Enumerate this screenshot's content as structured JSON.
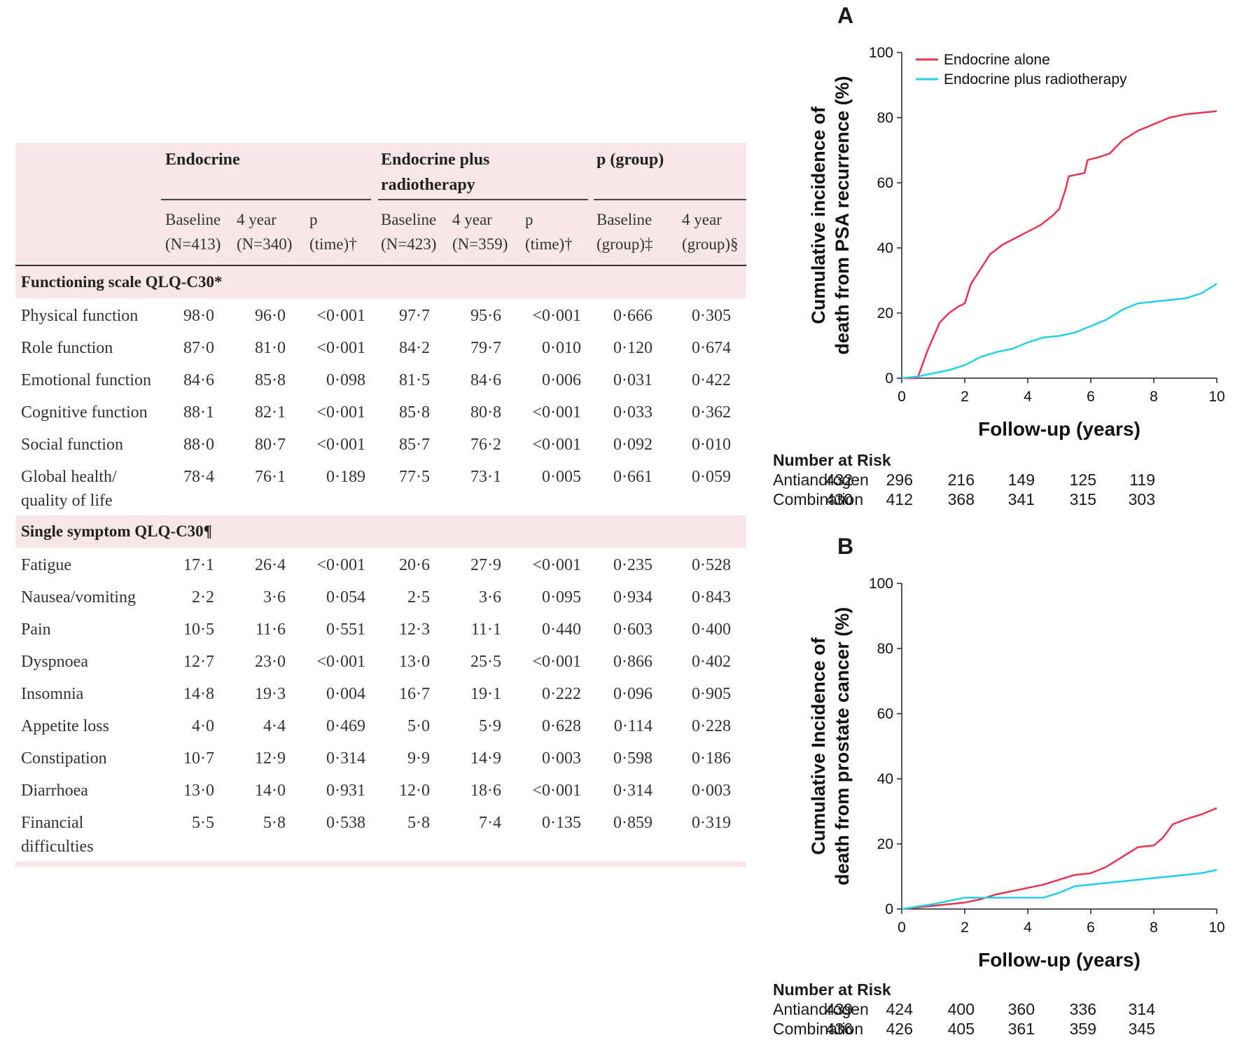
{
  "table": {
    "group_headers": [
      "Endocrine",
      "Endocrine plus radiotherapy",
      "p (group)"
    ],
    "sub_headers": [
      "Baseline (N=413)",
      "4 year (N=340)",
      "p (time)†",
      "Baseline (N=423)",
      "4 year (N=359)",
      "p (time)†",
      "Baseline (group)‡",
      "4 year (group)§"
    ],
    "section1": "Functioning scale QLQ-C30*",
    "rows1": [
      {
        "label": "Physical function",
        "v": [
          "98·0",
          "96·0",
          "<0·001",
          "97·7",
          "95·6",
          "<0·001",
          "0·666",
          "0·305"
        ]
      },
      {
        "label": "Role function",
        "v": [
          "87·0",
          "81·0",
          "<0·001",
          "84·2",
          "79·7",
          "0·010",
          "0·120",
          "0·674"
        ]
      },
      {
        "label": "Emotional function",
        "v": [
          "84·6",
          "85·8",
          "0·098",
          "81·5",
          "84·6",
          "0·006",
          "0·031",
          "0·422"
        ]
      },
      {
        "label": "Cognitive function",
        "v": [
          "88·1",
          "82·1",
          "<0·001",
          "85·8",
          "80·8",
          "<0·001",
          "0·033",
          "0·362"
        ]
      },
      {
        "label": "Social function",
        "v": [
          "88·0",
          "80·7",
          "<0·001",
          "85·7",
          "76·2",
          "<0·001",
          "0·092",
          "0·010"
        ]
      },
      {
        "label": "Global health/ quality of life",
        "v": [
          "78·4",
          "76·1",
          "0·189",
          "77·5",
          "73·1",
          "0·005",
          "0·661",
          "0·059"
        ]
      }
    ],
    "section2": "Single symptom QLQ-C30¶",
    "rows2": [
      {
        "label": "Fatigue",
        "v": [
          "17·1",
          "26·4",
          "<0·001",
          "20·6",
          "27·9",
          "<0·001",
          "0·235",
          "0·528"
        ]
      },
      {
        "label": "Nausea/vomiting",
        "v": [
          "2·2",
          "3·6",
          "0·054",
          "2·5",
          "3·6",
          "0·095",
          "0·934",
          "0·843"
        ]
      },
      {
        "label": "Pain",
        "v": [
          "10·5",
          "11·6",
          "0·551",
          "12·3",
          "11·1",
          "0·440",
          "0·603",
          "0·400"
        ]
      },
      {
        "label": "Dyspnoea",
        "v": [
          "12·7",
          "23·0",
          "<0·001",
          "13·0",
          "25·5",
          "<0·001",
          "0·866",
          "0·402"
        ]
      },
      {
        "label": "Insomnia",
        "v": [
          "14·8",
          "19·3",
          "0·004",
          "16·7",
          "19·1",
          "0·222",
          "0·096",
          "0·905"
        ]
      },
      {
        "label": "Appetite loss",
        "v": [
          "4·0",
          "4·4",
          "0·469",
          "5·0",
          "5·9",
          "0·628",
          "0·114",
          "0·228"
        ]
      },
      {
        "label": "Constipation",
        "v": [
          "10·7",
          "12·9",
          "0·314",
          "9·9",
          "14·9",
          "0·003",
          "0·598",
          "0·186"
        ]
      },
      {
        "label": "Diarrhoea",
        "v": [
          "13·0",
          "14·0",
          "0·931",
          "12·0",
          "18·6",
          "<0·001",
          "0·314",
          "0·003"
        ]
      },
      {
        "label": "Financial difficulties",
        "v": [
          "5·5",
          "5·8",
          "0·538",
          "5·8",
          "7·4",
          "0·135",
          "0·859",
          "0·319"
        ]
      }
    ]
  },
  "colors": {
    "endocrine": "#e8344e",
    "combo": "#22d0e6",
    "table_bg": "#f8e7e7"
  },
  "chart_data": [
    {
      "panel": "A",
      "type": "line",
      "ylabel": "Cumulative incidence of death from PSA recurrence (%)",
      "xlabel": "Follow-up (years)",
      "xlim": [
        0,
        10
      ],
      "ylim": [
        0,
        100
      ],
      "xticks": [
        "0",
        "2",
        "4",
        "6",
        "8",
        "10"
      ],
      "yticks": [
        "0",
        "20",
        "40",
        "60",
        "80",
        "100"
      ],
      "legend_position": "top-left",
      "series": [
        {
          "name": "Endocrine alone",
          "x": [
            0,
            0.5,
            0.8,
            1.2,
            1.5,
            1.8,
            2.0,
            2.2,
            2.4,
            2.6,
            2.8,
            3.2,
            3.6,
            4.0,
            4.4,
            4.8,
            5.0,
            5.2,
            5.3,
            5.8,
            5.9,
            6.3,
            6.6,
            7.0,
            7.5,
            8.0,
            8.5,
            9.0,
            9.5,
            10.0
          ],
          "y": [
            0,
            0,
            8,
            17,
            20,
            22,
            23,
            29,
            32,
            35,
            38,
            41,
            43,
            45,
            47,
            50,
            52,
            58,
            62,
            63,
            67,
            68,
            69,
            73,
            76,
            78,
            80,
            81,
            81.5,
            82
          ]
        },
        {
          "name": "Endocrine plus radiotherapy",
          "x": [
            0,
            0.5,
            1.0,
            1.5,
            2.0,
            2.5,
            3.0,
            3.5,
            4.0,
            4.5,
            5.0,
            5.5,
            6.0,
            6.5,
            7.0,
            7.5,
            8.0,
            8.5,
            9.0,
            9.5,
            10.0
          ],
          "y": [
            0,
            0.5,
            1.5,
            2.5,
            4,
            6.5,
            8,
            9,
            11,
            12.5,
            13,
            14,
            16,
            18,
            21,
            23,
            23.5,
            24,
            24.5,
            26,
            29
          ]
        }
      ],
      "risk_title": "Number at Risk",
      "risk_labels": [
        "Antiandrogen",
        "Combination"
      ],
      "risk_rows": [
        [
          "432",
          "296",
          "216",
          "149",
          "125",
          "119"
        ],
        [
          "430",
          "412",
          "368",
          "341",
          "315",
          "303"
        ]
      ]
    },
    {
      "panel": "B",
      "type": "line",
      "ylabel": "Cumulative Incidence of death from prostate cancer (%)",
      "xlabel": "Follow-up (years)",
      "xlim": [
        0,
        10
      ],
      "ylim": [
        0,
        100
      ],
      "xticks": [
        "0",
        "2",
        "4",
        "6",
        "8",
        "10"
      ],
      "yticks": [
        "0",
        "20",
        "40",
        "60",
        "80",
        "100"
      ],
      "series": [
        {
          "name": "Endocrine alone",
          "x": [
            0,
            1,
            2,
            2.5,
            3,
            3.5,
            4,
            4.5,
            5,
            5.5,
            6,
            6.5,
            7,
            7.5,
            8,
            8.3,
            8.6,
            9,
            9.5,
            10
          ],
          "y": [
            0,
            1,
            2,
            3,
            4.5,
            5.5,
            6.5,
            7.5,
            9,
            10.5,
            11,
            13,
            16,
            19,
            19.5,
            22,
            26,
            27.5,
            29,
            31
          ]
        },
        {
          "name": "Endocrine plus radiotherapy",
          "x": [
            0,
            1,
            1.5,
            2,
            2.5,
            3,
            3.5,
            4,
            4.5,
            5,
            5.5,
            6,
            6.5,
            7,
            7.5,
            8,
            8.5,
            9,
            9.5,
            10
          ],
          "y": [
            0,
            1.5,
            2.5,
            3.5,
            3.5,
            3.5,
            3.5,
            3.5,
            3.5,
            5,
            7,
            7.5,
            8,
            8.5,
            9,
            9.5,
            10,
            10.5,
            11,
            12
          ]
        }
      ],
      "risk_title": "Number at Risk",
      "risk_labels": [
        "Antiandrogen",
        "Combination"
      ],
      "risk_rows": [
        [
          "439",
          "424",
          "400",
          "360",
          "336",
          "314"
        ],
        [
          "436",
          "426",
          "405",
          "361",
          "359",
          "345"
        ]
      ]
    }
  ]
}
